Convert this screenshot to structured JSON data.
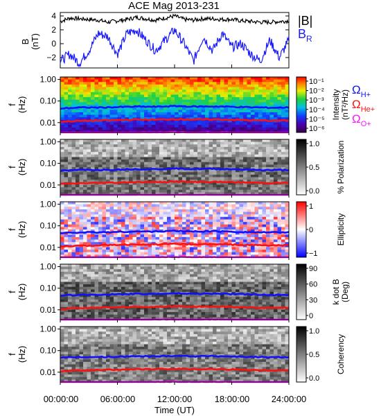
{
  "title": "ACE Mag 2013-231",
  "colors": {
    "total_field": "#000000",
    "radial_field": "#1a1aff",
    "h_plus": "#1010ff",
    "he_plus": "#ff1010",
    "o_plus": "#ff10ff",
    "frame": "#000000"
  },
  "time_axis": {
    "label": "Time (UT)",
    "ticks": [
      "00:00:00",
      "06:00:00",
      "12:00:00",
      "18:00:00",
      "24:00:00"
    ],
    "range_hours": [
      0,
      24
    ]
  },
  "field_panel": {
    "ylabel_line1": "B",
    "ylabel_line2": "(nT)",
    "yticks": [
      "4",
      "2",
      "0",
      "−2"
    ],
    "ylim": [
      -3.5,
      4.5
    ],
    "legend_total": "|B|",
    "legend_radial_main": "B",
    "legend_radial_sub": "R"
  },
  "freq_axis": {
    "ylabel_line1": "f",
    "ylabel_line2": "(Hz)",
    "ticks": [
      "1.00",
      "0.10",
      "0.01"
    ],
    "ylim_hz": [
      0.0035,
      1.3
    ],
    "scale": "log"
  },
  "panels": [
    {
      "id": "intensity",
      "colormap": "rainbow",
      "colorbar_ticks": [
        "10⁻¹",
        "10⁻²",
        "10⁻³",
        "10⁻⁴",
        "10⁻⁵",
        "10⁻⁶"
      ],
      "colorbar_label_line1": "Intensity",
      "colorbar_label_line2": "(nT²/Hz)"
    },
    {
      "id": "polarization",
      "colormap": "gray",
      "colorbar_ticks": [
        "1.0",
        "0.5",
        "0.0"
      ],
      "colorbar_label_line1": "% Polarization",
      "colorbar_label_line2": ""
    },
    {
      "id": "ellipticity",
      "colormap": "bwr",
      "colorbar_ticks": [
        "1",
        "0",
        "−1"
      ],
      "colorbar_label_line1": "Ellipticity",
      "colorbar_label_line2": ""
    },
    {
      "id": "k_dot_b",
      "colormap": "gray",
      "colorbar_ticks": [
        "90",
        "60",
        "30",
        "0"
      ],
      "colorbar_label_line1": "k dot B",
      "colorbar_label_line2": "(Deg)"
    },
    {
      "id": "coherency",
      "colormap": "gray",
      "colorbar_ticks": [
        "1.0",
        "0.5",
        "0.0"
      ],
      "colorbar_label_line1": "Coherency",
      "colorbar_label_line2": ""
    }
  ],
  "gyro_legend": {
    "h_main": "Ω",
    "h_sub": "H+",
    "he_main": "Ω",
    "he_sub": "He+",
    "o_main": "Ω",
    "o_sub": "O+"
  },
  "chart_data": {
    "type": "line",
    "x_unit": "hours UT",
    "x_range": [
      0,
      24
    ],
    "series": [
      {
        "name": "|B|",
        "x": [
          0,
          1,
          2,
          3,
          4,
          5,
          6,
          7,
          8,
          9,
          10,
          11,
          12,
          13,
          14,
          15,
          16,
          17,
          18,
          19,
          20,
          21,
          22,
          23,
          24
        ],
        "values": [
          3.2,
          3.7,
          3.6,
          3.5,
          3.4,
          3.1,
          3.3,
          3.5,
          3.8,
          3.6,
          3.4,
          3.7,
          4.0,
          3.5,
          3.4,
          3.6,
          3.6,
          3.5,
          3.5,
          3.3,
          3.2,
          3.1,
          3.1,
          3.2,
          3.3
        ]
      },
      {
        "name": "B_R",
        "x": [
          0,
          1,
          2,
          3,
          4,
          5,
          6,
          7,
          8,
          9,
          10,
          11,
          12,
          13,
          14,
          15,
          16,
          17,
          18,
          19,
          20,
          21,
          22,
          23,
          24
        ],
        "values": [
          -2.5,
          -1.5,
          -2.8,
          -1.0,
          1.5,
          1.0,
          -1.5,
          1.5,
          2.0,
          0.5,
          -1.0,
          0.5,
          2.0,
          0.0,
          -2.5,
          1.0,
          -1.0,
          1.5,
          -0.5,
          0.0,
          -1.5,
          -2.5,
          0.5,
          -2.0,
          0.5
        ]
      },
      {
        "name": "Ω H+",
        "x": [
          0,
          2,
          4,
          6,
          8,
          10,
          12,
          14,
          16,
          18,
          20,
          22,
          24
        ],
        "values": [
          0.045,
          0.05,
          0.05,
          0.052,
          0.055,
          0.054,
          0.058,
          0.055,
          0.056,
          0.054,
          0.051,
          0.049,
          0.05
        ]
      },
      {
        "name": "Ω He+",
        "x": [
          0,
          2,
          4,
          6,
          8,
          10,
          12,
          14,
          16,
          18,
          20,
          22,
          24
        ],
        "values": [
          0.011,
          0.012,
          0.0125,
          0.013,
          0.0138,
          0.0135,
          0.0145,
          0.0138,
          0.014,
          0.0135,
          0.0128,
          0.0123,
          0.0125
        ]
      },
      {
        "name": "Ω O+",
        "x": [
          0,
          2,
          4,
          6,
          8,
          10,
          12,
          14,
          16,
          18,
          20,
          22,
          24
        ],
        "values": [
          0.0028,
          0.003,
          0.0031,
          0.0033,
          0.0034,
          0.0034,
          0.0036,
          0.0034,
          0.0035,
          0.0034,
          0.0032,
          0.0031,
          0.0031
        ]
      }
    ]
  }
}
